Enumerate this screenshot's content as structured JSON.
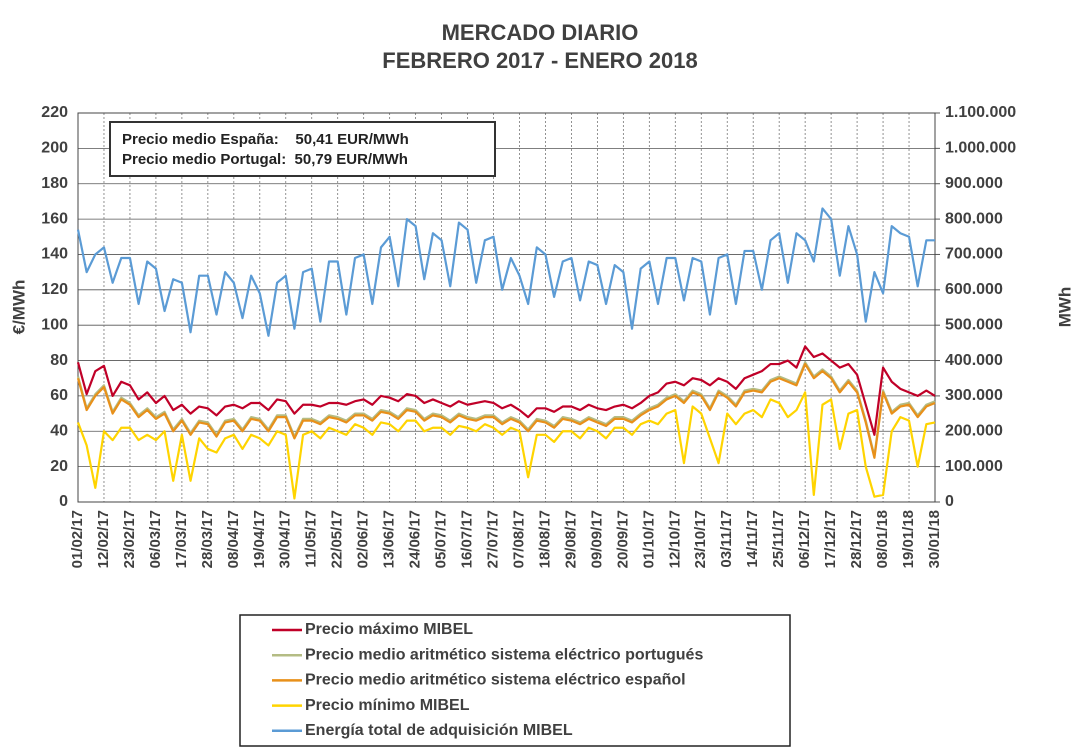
{
  "chart_data": {
    "type": "line",
    "title": "MERCADO DIARIO",
    "subtitle": "FEBRERO 2017 - ENERO 2018",
    "ylabel": "€/MWh",
    "y2label": "MWh",
    "annotations": [
      "Precio medio España:    50,41 EUR/MWh",
      "Precio medio Portugal:  50,79 EUR/MWh"
    ],
    "categories": [
      "01/02/17",
      null,
      null,
      "12/02/17",
      null,
      null,
      "23/02/17",
      null,
      null,
      "06/03/17",
      null,
      null,
      "17/03/17",
      null,
      null,
      "28/03/17",
      null,
      null,
      "08/04/17",
      null,
      null,
      "19/04/17",
      null,
      null,
      "30/04/17",
      null,
      null,
      "11/05/17",
      null,
      null,
      "22/05/17",
      null,
      null,
      "02/06/17",
      null,
      null,
      "13/06/17",
      null,
      null,
      "24/06/17",
      null,
      null,
      "05/07/17",
      null,
      null,
      "16/07/17",
      null,
      null,
      "27/07/17",
      null,
      null,
      "07/08/17",
      null,
      null,
      "18/08/17",
      null,
      null,
      "29/08/17",
      null,
      null,
      "09/09/17",
      null,
      null,
      "20/09/17",
      null,
      null,
      "01/10/17",
      null,
      null,
      "12/10/17",
      null,
      null,
      "23/10/17",
      null,
      null,
      "03/11/17",
      null,
      null,
      "14/11/17",
      null,
      null,
      "25/11/17",
      null,
      null,
      "06/12/17",
      null,
      null,
      "17/12/17",
      null,
      null,
      "28/12/17",
      null,
      null,
      "08/01/18",
      null,
      null,
      "19/01/18",
      null,
      null,
      "30/01/18"
    ],
    "ylim": [
      0,
      220
    ],
    "yticks": [
      0,
      20,
      40,
      60,
      80,
      100,
      120,
      140,
      160,
      180,
      200,
      220
    ],
    "y2lim": [
      0,
      1100000
    ],
    "y2ticks": [
      0,
      {
        "value": 100000,
        "label": "100.000"
      },
      {
        "value": 200000,
        "label": "200.000"
      },
      {
        "value": 300000,
        "label": "300.000"
      },
      {
        "value": 400000,
        "label": "400.000"
      },
      {
        "value": 500000,
        "label": "500.000"
      },
      {
        "value": 600000,
        "label": "600.000"
      },
      {
        "value": 700000,
        "label": "700.000"
      },
      {
        "value": 800000,
        "label": "800.000"
      },
      {
        "value": 900000,
        "label": "900.000"
      },
      {
        "value": 1000000,
        "label": "1.000.000"
      },
      {
        "value": 1100000,
        "label": "1.100.000"
      }
    ],
    "grid": true,
    "legend": "bottom",
    "series": [
      {
        "name": "Precio máximo MIBEL",
        "color": "#c00028",
        "values": [
          79,
          61,
          74,
          77,
          60,
          68,
          66,
          58,
          62,
          56,
          60,
          52,
          55,
          50,
          54,
          53,
          49,
          54,
          55,
          53,
          56,
          56,
          52,
          58,
          57,
          50,
          55,
          55,
          54,
          56,
          56,
          55,
          57,
          58,
          55,
          60,
          59,
          57,
          61,
          60,
          56,
          58,
          56,
          54,
          57,
          55,
          56,
          57,
          56,
          53,
          55,
          52,
          48,
          53,
          53,
          51,
          54,
          54,
          52,
          55,
          53,
          52,
          54,
          55,
          53,
          56,
          60,
          62,
          67,
          68,
          66,
          70,
          69,
          66,
          70,
          68,
          64,
          70,
          72,
          74,
          78,
          78,
          80,
          76,
          88,
          82,
          84,
          80,
          76,
          78,
          72,
          55,
          38,
          76,
          68,
          64,
          62,
          60,
          63,
          60
        ]
      },
      {
        "name": "Precio medio aritmético sistema eléctrico portugués",
        "color": "#b4bc84",
        "values": [
          71,
          53,
          61,
          66,
          51,
          59,
          56,
          49,
          53,
          48,
          51,
          41,
          47,
          39,
          46,
          45,
          38,
          46,
          47,
          41,
          48,
          47,
          41,
          49,
          49,
          37,
          47,
          47,
          45,
          49,
          48,
          46,
          50,
          50,
          47,
          52,
          51,
          48,
          53,
          52,
          47,
          50,
          49,
          46,
          50,
          48,
          47,
          49,
          49,
          45,
          48,
          46,
          41,
          47,
          46,
          43,
          48,
          47,
          45,
          48,
          46,
          44,
          48,
          48,
          46,
          50,
          53,
          55,
          59,
          61,
          57,
          63,
          61,
          53,
          63,
          60,
          55,
          63,
          64,
          63,
          69,
          71,
          69,
          67,
          79,
          71,
          75,
          71,
          63,
          69,
          63,
          46,
          26,
          63,
          51,
          55,
          56,
          49,
          55,
          57
        ]
      },
      {
        "name": "Precio medio aritmético sistema eléctrico español",
        "color": "#e8901a",
        "values": [
          70,
          52,
          60,
          65,
          50,
          58,
          55,
          48,
          52,
          47,
          50,
          40,
          46,
          38,
          45,
          44,
          37,
          45,
          46,
          40,
          47,
          46,
          40,
          48,
          48,
          36,
          46,
          46,
          44,
          48,
          47,
          45,
          49,
          49,
          46,
          51,
          50,
          47,
          52,
          51,
          46,
          49,
          48,
          45,
          49,
          47,
          46,
          48,
          48,
          44,
          47,
          45,
          40,
          46,
          45,
          42,
          47,
          46,
          44,
          47,
          45,
          43,
          47,
          47,
          45,
          49,
          52,
          54,
          58,
          60,
          56,
          62,
          60,
          52,
          62,
          59,
          54,
          62,
          63,
          62,
          68,
          70,
          68,
          66,
          78,
          70,
          74,
          70,
          62,
          68,
          62,
          45,
          25,
          62,
          50,
          54,
          55,
          48,
          54,
          56
        ]
      },
      {
        "name": "Precio mínimo MIBEL",
        "color": "#ffd400",
        "values": [
          45,
          32,
          8,
          40,
          35,
          42,
          42,
          35,
          38,
          35,
          40,
          12,
          38,
          12,
          36,
          30,
          28,
          36,
          38,
          30,
          38,
          36,
          32,
          40,
          38,
          2,
          38,
          40,
          36,
          42,
          40,
          38,
          44,
          42,
          38,
          45,
          44,
          40,
          46,
          46,
          40,
          42,
          42,
          38,
          43,
          42,
          40,
          44,
          42,
          38,
          42,
          40,
          14,
          38,
          38,
          34,
          40,
          40,
          36,
          42,
          40,
          36,
          42,
          42,
          38,
          44,
          46,
          44,
          50,
          52,
          22,
          54,
          50,
          36,
          22,
          50,
          44,
          50,
          52,
          48,
          58,
          56,
          48,
          52,
          62,
          4,
          55,
          58,
          30,
          50,
          52,
          20,
          3,
          4,
          40,
          48,
          46,
          20,
          44,
          45
        ]
      },
      {
        "name": "Energía total de adquisición MIBEL",
        "color": "#5b9bd5",
        "axis": "y2",
        "values": [
          770000,
          650000,
          700000,
          720000,
          620000,
          690000,
          690000,
          560000,
          680000,
          660000,
          540000,
          630000,
          620000,
          480000,
          640000,
          640000,
          530000,
          650000,
          620000,
          520000,
          640000,
          590000,
          470000,
          620000,
          640000,
          490000,
          650000,
          660000,
          510000,
          680000,
          680000,
          530000,
          690000,
          700000,
          560000,
          720000,
          750000,
          610000,
          800000,
          780000,
          630000,
          760000,
          740000,
          610000,
          790000,
          770000,
          620000,
          740000,
          750000,
          600000,
          690000,
          640000,
          560000,
          720000,
          700000,
          580000,
          680000,
          690000,
          570000,
          680000,
          670000,
          560000,
          670000,
          650000,
          490000,
          660000,
          680000,
          560000,
          690000,
          690000,
          570000,
          690000,
          680000,
          530000,
          690000,
          700000,
          560000,
          710000,
          710000,
          600000,
          740000,
          760000,
          620000,
          760000,
          740000,
          680000,
          830000,
          800000,
          640000,
          780000,
          700000,
          510000,
          650000,
          590000,
          780000,
          760000,
          750000,
          610000,
          740000,
          740000
        ]
      }
    ]
  }
}
